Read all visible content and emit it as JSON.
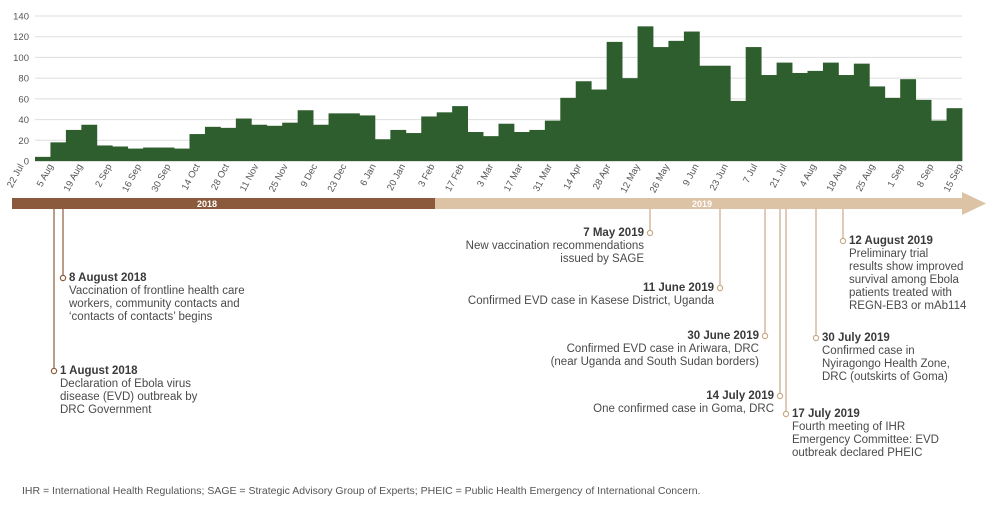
{
  "chart_data": {
    "type": "bar",
    "ylim": [
      0,
      140
    ],
    "yticks": [
      0,
      20,
      40,
      60,
      80,
      100,
      120,
      140
    ],
    "grid": true,
    "bar_color": "#2f5e2e",
    "values": [
      4,
      18,
      30,
      35,
      15,
      14,
      12,
      13,
      13,
      12,
      26,
      33,
      32,
      41,
      35,
      34,
      37,
      49,
      35,
      46,
      46,
      44,
      21,
      30,
      27,
      43,
      47,
      53,
      28,
      24,
      36,
      28,
      30,
      39,
      61,
      77,
      69,
      115,
      80,
      130,
      110,
      116,
      125,
      92,
      92,
      58,
      110,
      83,
      95,
      85,
      87,
      95,
      83,
      94,
      72,
      61,
      79,
      59,
      39,
      51
    ],
    "xtick_labels": [
      "22 Jul",
      "5 Aug",
      "19 Aug",
      "2 Sep",
      "16 Sep",
      "30 Sep",
      "14 Oct",
      "28 Oct",
      "11 Nov",
      "25 Nov",
      "9 Dec",
      "23 Dec",
      "6 Jan",
      "20 Jan",
      "3 Feb",
      "17 Feb",
      "3 Mar",
      "17 Mar",
      "31 Mar",
      "14 Apr",
      "28 Apr",
      "12 May",
      "26 May",
      "9 Jun",
      "23 Jun",
      "7 Jul",
      "21 Jul",
      "4 Aug",
      "18 Aug",
      "25 Aug",
      "1 Sep",
      "8 Sep",
      "15 Sep"
    ],
    "timeline": {
      "years": [
        "2018",
        "2019"
      ],
      "colors": {
        "y2018": "#8b5a3c",
        "y2019": "#dcc3a6"
      }
    }
  },
  "annotations": [
    {
      "date": "1 August 2018",
      "text": "Declaration of Ebola virus\ndisease (EVD) outbreak by\nDRC Government"
    },
    {
      "date": "8 August 2018",
      "text": "Vaccination of frontline health care\nworkers, community contacts and\n‘contacts of contacts’ begins"
    },
    {
      "date": "7 May 2019",
      "text": "New vaccination recommendations\nissued by SAGE"
    },
    {
      "date": "11 June 2019",
      "text": "Confirmed EVD case in Kasese District, Uganda"
    },
    {
      "date": "30 June 2019",
      "text": "Confirmed EVD case in Ariwara, DRC\n(near Uganda and South Sudan borders)"
    },
    {
      "date": "14 July 2019",
      "text": "One confirmed case in Goma, DRC"
    },
    {
      "date": "17 July 2019",
      "text": "Fourth meeting of IHR\nEmergency Committee: EVD\noutbreak declared PHEIC"
    },
    {
      "date": "30 July 2019",
      "text": "Confirmed case in\nNyiragongo Health Zone,\nDRC (outskirts of Goma)"
    },
    {
      "date": "12 August 2019",
      "text": "Preliminary trial\nresults show improved\nsurvival among Ebola\npatients treated with\nREGN-EB3 or mAb114"
    }
  ],
  "footnote": "IHR = International Health Regulations; SAGE = Strategic Advisory Group of Experts; PHEIC = Public Health Emergency of International Concern."
}
